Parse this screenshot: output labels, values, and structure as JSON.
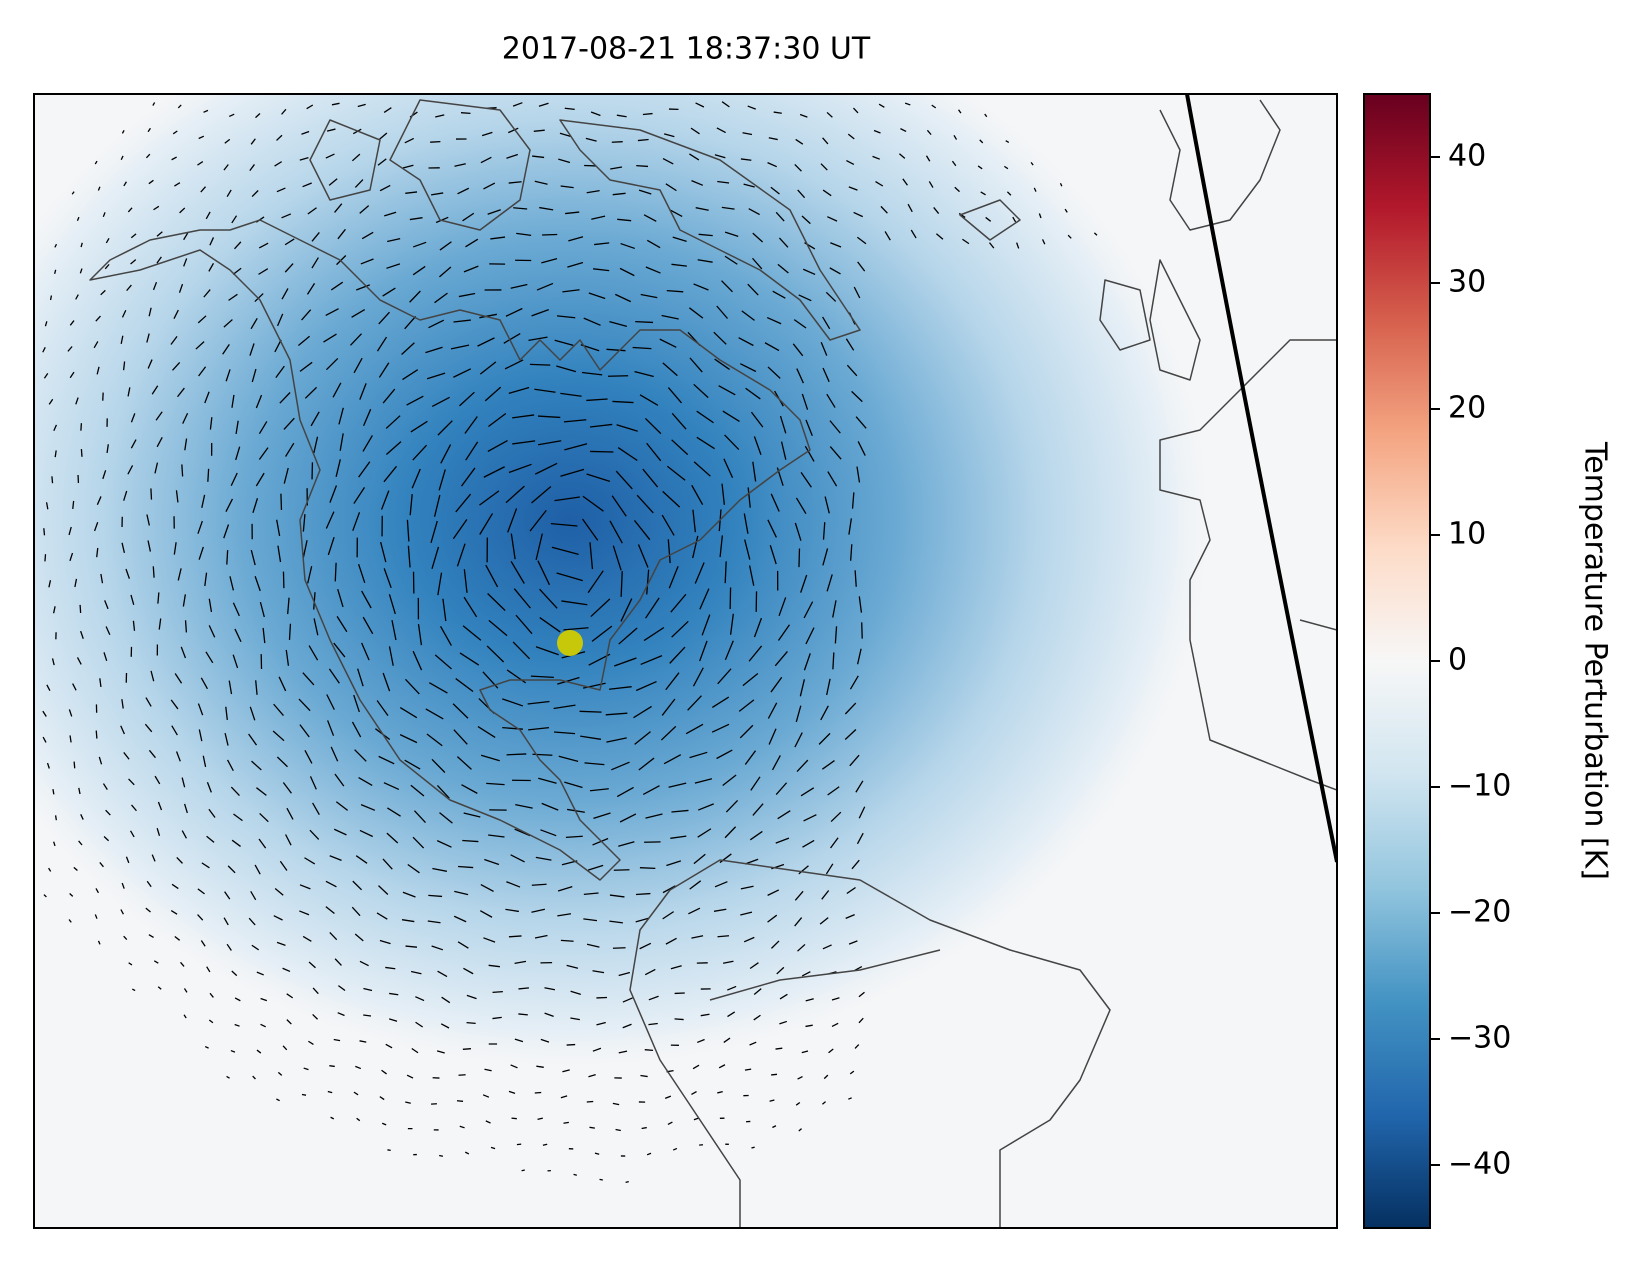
{
  "chart_data": {
    "type": "map",
    "title": "2017-08-21 18:37:30 UT",
    "colorbar": {
      "label": "Temperature Perturbation [K]",
      "ylim": [
        -45,
        45
      ],
      "yticks": [
        {
          "value": -40,
          "label": "−40"
        },
        {
          "value": -30,
          "label": "−30"
        },
        {
          "value": -20,
          "label": "−20"
        },
        {
          "value": -10,
          "label": "−10"
        },
        0,
        10,
        20,
        30,
        40
      ]
    }
  }
}
